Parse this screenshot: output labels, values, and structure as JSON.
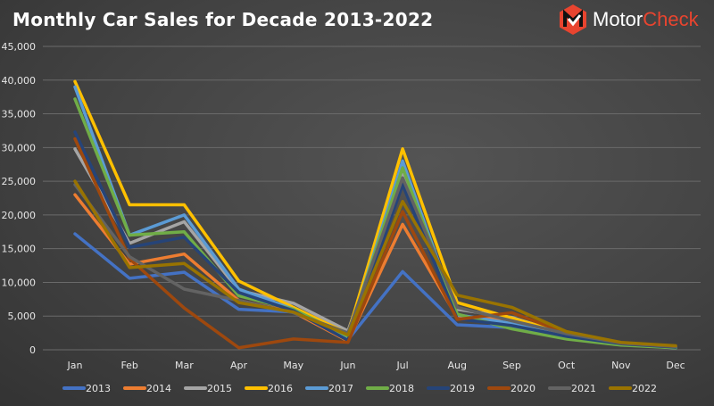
{
  "logo": {
    "part1": "Motor",
    "part2": "Check"
  },
  "chart_data": {
    "type": "line",
    "title": "Monthly Car Sales for Decade 2013-2022",
    "xlabel": "",
    "ylabel": "",
    "ylim": [
      0,
      45000
    ],
    "yticks": [
      0,
      5000,
      10000,
      15000,
      20000,
      25000,
      30000,
      35000,
      40000,
      45000
    ],
    "ytick_labels": [
      "0",
      "5,000",
      "10,000",
      "15,000",
      "20,000",
      "25,000",
      "30,000",
      "35,000",
      "40,000",
      "45,000"
    ],
    "grid": true,
    "legend": "bottom",
    "categories": [
      "Jan",
      "Feb",
      "Mar",
      "Apr",
      "May",
      "Jun",
      "Jul",
      "Aug",
      "Sep",
      "Oct",
      "Nov",
      "Dec"
    ],
    "series": [
      {
        "name": "2013",
        "color": "#4472c4",
        "values": [
          17200,
          10600,
          11500,
          6000,
          5600,
          1500,
          11600,
          3700,
          3300,
          1800,
          800,
          300
        ]
      },
      {
        "name": "2014",
        "color": "#ed7d31",
        "values": [
          23000,
          12700,
          14200,
          7300,
          5600,
          1300,
          18600,
          4800,
          4600,
          2200,
          900,
          400
        ]
      },
      {
        "name": "2015",
        "color": "#a5a5a5",
        "values": [
          29800,
          15800,
          19000,
          8800,
          6900,
          2800,
          26000,
          6000,
          4800,
          2300,
          900,
          400
        ]
      },
      {
        "name": "2016",
        "color": "#ffc000",
        "values": [
          39800,
          21500,
          21500,
          10200,
          6300,
          2400,
          29800,
          7000,
          4700,
          2400,
          1000,
          400
        ]
      },
      {
        "name": "2017",
        "color": "#5b9bd5",
        "values": [
          39000,
          17000,
          20000,
          9000,
          6000,
          1800,
          28000,
          5200,
          3900,
          2000,
          900,
          300
        ]
      },
      {
        "name": "2018",
        "color": "#70ad47",
        "values": [
          37200,
          17000,
          17500,
          8000,
          6000,
          2000,
          27000,
          5300,
          3100,
          1600,
          700,
          300
        ]
      },
      {
        "name": "2019",
        "color": "#264478",
        "values": [
          32300,
          15200,
          16700,
          8500,
          5800,
          1400,
          24500,
          4600,
          3600,
          2000,
          900,
          400
        ]
      },
      {
        "name": "2020",
        "color": "#9e480e",
        "values": [
          31300,
          13500,
          6200,
          300,
          1600,
          1100,
          20500,
          4500,
          5500,
          2500,
          1000,
          500
        ]
      },
      {
        "name": "2021",
        "color": "#636363",
        "values": [
          24500,
          13800,
          9000,
          7300,
          5500,
          2500,
          25500,
          6300,
          4300,
          2400,
          1000,
          500
        ]
      },
      {
        "name": "2022",
        "color": "#997300",
        "values": [
          25000,
          12200,
          12800,
          7000,
          5600,
          2200,
          22000,
          8100,
          6300,
          2700,
          1100,
          600
        ]
      }
    ]
  }
}
